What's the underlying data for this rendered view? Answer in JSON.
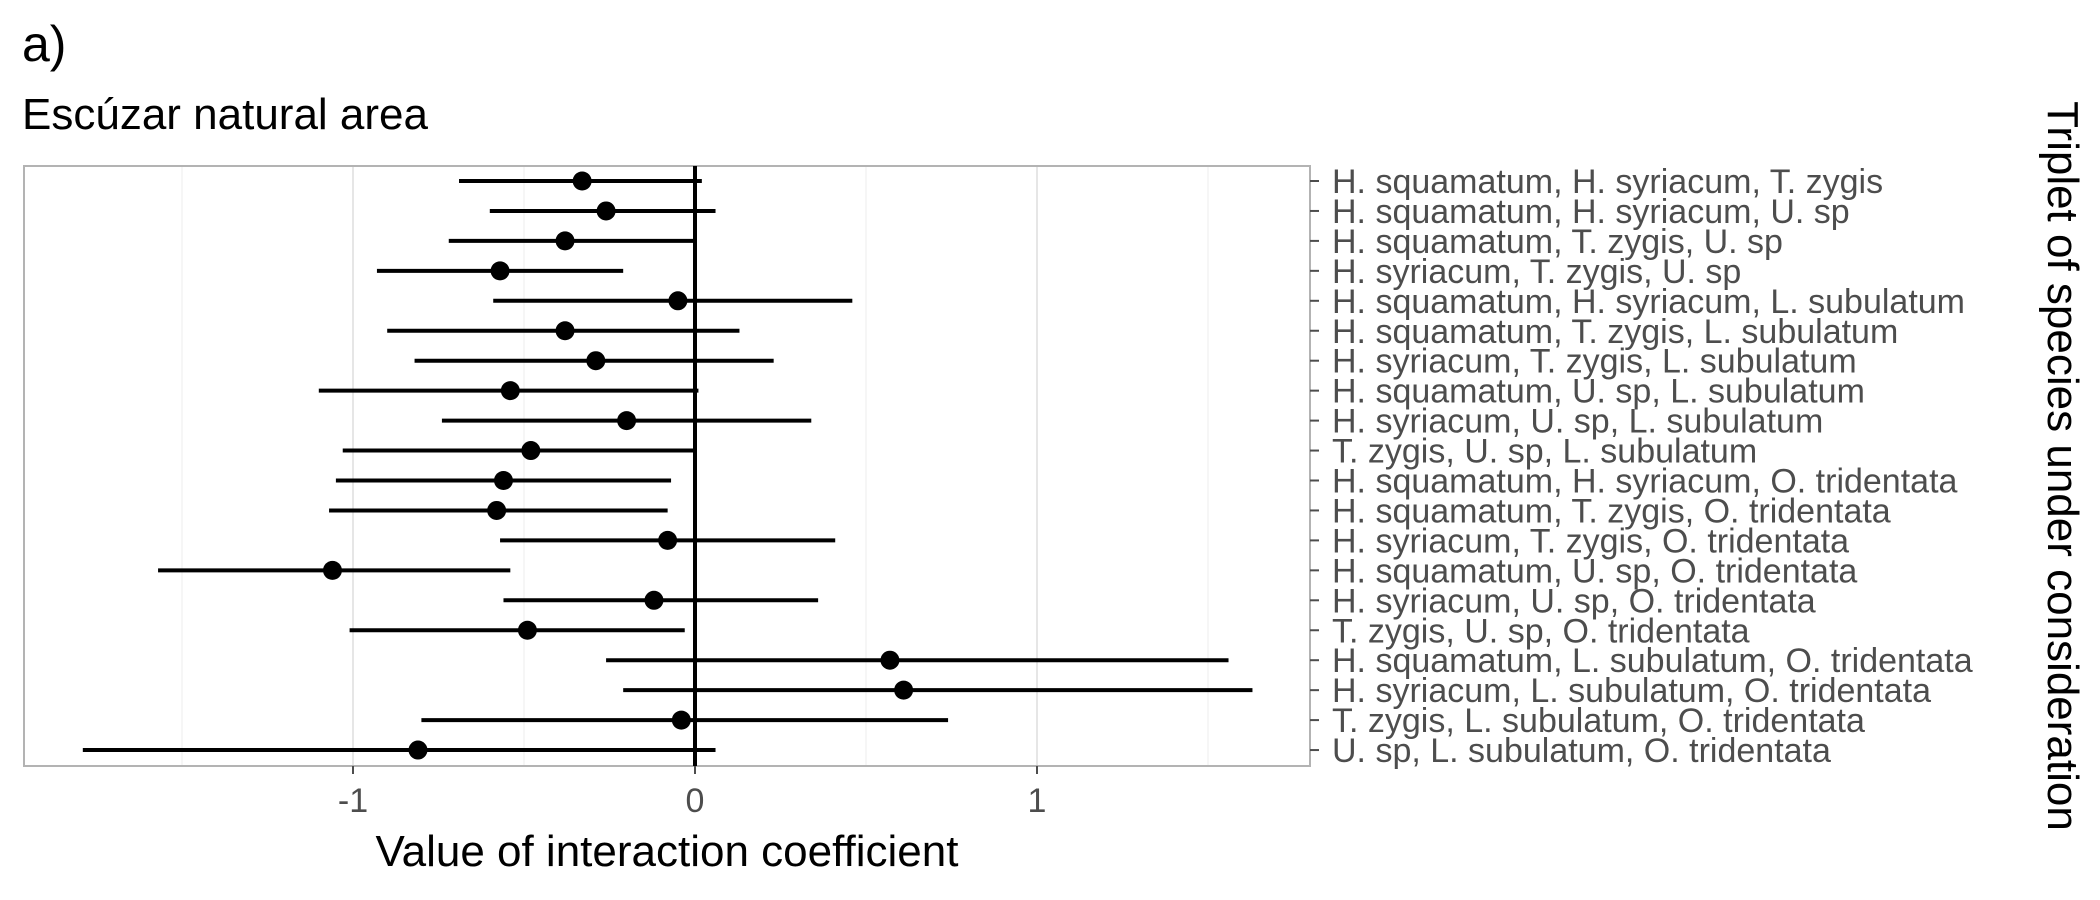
{
  "panel_tag": "a)",
  "chart_data": {
    "type": "forest",
    "title": "Escúzar natural area",
    "xlabel": "Value of interaction coefficient",
    "ylabel": "Triplet of species under consideration",
    "xlim": [
      -1.8,
      1.8
    ],
    "x_ticks": [
      -1,
      0,
      1
    ],
    "x_tick_labels": [
      "-1",
      "0",
      "1"
    ],
    "grid": true,
    "reference_line": 0,
    "rows": [
      {
        "label": "H. squamatum, H. syriacum, T. zygis",
        "estimate": -0.33,
        "low": -0.69,
        "high": 0.02
      },
      {
        "label": "H. squamatum, H. syriacum, U. sp",
        "estimate": -0.26,
        "low": -0.6,
        "high": 0.06
      },
      {
        "label": "H. squamatum, T. zygis, U. sp",
        "estimate": -0.38,
        "low": -0.72,
        "high": 0.0
      },
      {
        "label": "H. syriacum, T. zygis, U. sp",
        "estimate": -0.57,
        "low": -0.93,
        "high": -0.21
      },
      {
        "label": "H. squamatum, H. syriacum, L. subulatum",
        "estimate": -0.05,
        "low": -0.59,
        "high": 0.46
      },
      {
        "label": "H. squamatum, T. zygis, L. subulatum",
        "estimate": -0.38,
        "low": -0.9,
        "high": 0.13
      },
      {
        "label": "H. syriacum, T. zygis, L. subulatum",
        "estimate": -0.29,
        "low": -0.82,
        "high": 0.23
      },
      {
        "label": "H. squamatum, U. sp, L. subulatum",
        "estimate": -0.54,
        "low": -1.1,
        "high": 0.01
      },
      {
        "label": "H. syriacum, U. sp, L. subulatum",
        "estimate": -0.2,
        "low": -0.74,
        "high": 0.34
      },
      {
        "label": "T. zygis, U. sp, L. subulatum",
        "estimate": -0.48,
        "low": -1.03,
        "high": 0.0
      },
      {
        "label": "H. squamatum, H. syriacum, O. tridentata",
        "estimate": -0.56,
        "low": -1.05,
        "high": -0.07
      },
      {
        "label": "H. squamatum, T. zygis, O. tridentata",
        "estimate": -0.58,
        "low": -1.07,
        "high": -0.08
      },
      {
        "label": "H. syriacum, T. zygis, O. tridentata",
        "estimate": -0.08,
        "low": -0.57,
        "high": 0.41
      },
      {
        "label": "H. squamatum, U. sp, O. tridentata",
        "estimate": -1.06,
        "low": -1.57,
        "high": -0.54
      },
      {
        "label": "H. syriacum, U. sp, O. tridentata",
        "estimate": -0.12,
        "low": -0.56,
        "high": 0.36
      },
      {
        "label": "T. zygis, U. sp, O. tridentata",
        "estimate": -0.49,
        "low": -1.01,
        "high": -0.03
      },
      {
        "label": "H. squamatum, L. subulatum, O. tridentata",
        "estimate": 0.57,
        "low": -0.26,
        "high": 1.56
      },
      {
        "label": "H. syriacum, L. subulatum, O. tridentata",
        "estimate": 0.61,
        "low": -0.21,
        "high": 1.63
      },
      {
        "label": "T. zygis, L. subulatum, O. tridentata",
        "estimate": -0.04,
        "low": -0.8,
        "high": 0.74
      },
      {
        "label": "U. sp, L. subulatum, O. tridentata",
        "estimate": -0.81,
        "low": -1.79,
        "high": 0.06
      }
    ]
  }
}
